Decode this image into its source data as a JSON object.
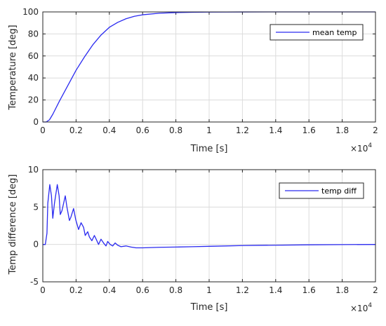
{
  "colors": {
    "line": "#2a2af0",
    "grid": "#dcdcdc",
    "axis": "#262626"
  },
  "chart_data": [
    {
      "type": "line",
      "title": "",
      "xlabel": "Time [s]",
      "ylabel": "Temperature [deg]",
      "x_exponent_base": "×10",
      "x_exponent_power": "4",
      "x_ticks": [
        "0",
        "0.2",
        "0.4",
        "0.6",
        "0.8",
        "1",
        "1.2",
        "1.4",
        "1.6",
        "1.8",
        "2"
      ],
      "y_ticks": [
        "0",
        "20",
        "40",
        "60",
        "80",
        "100"
      ],
      "xlim": [
        0,
        20000
      ],
      "ylim": [
        0,
        100
      ],
      "grid": true,
      "legend": "top-right",
      "series": [
        {
          "name": "mean temp",
          "x": [
            0,
            200,
            400,
            600,
            1000,
            1500,
            2000,
            2500,
            3000,
            3500,
            4000,
            4500,
            5000,
            5500,
            6000,
            7000,
            8000,
            9000,
            10000,
            12000,
            14000,
            16000,
            18000,
            20000
          ],
          "y": [
            0,
            0,
            2,
            7,
            19,
            33,
            47,
            59,
            70,
            79,
            86,
            90.5,
            93.8,
            96,
            97.4,
            98.8,
            99.4,
            99.7,
            99.85,
            99.95,
            100,
            100,
            100,
            100
          ]
        }
      ]
    },
    {
      "type": "line",
      "title": "",
      "xlabel": "Time [s]",
      "ylabel": "Temp difference [deg]",
      "x_exponent_base": "×10",
      "x_exponent_power": "4",
      "x_ticks": [
        "0",
        "0.2",
        "0.4",
        "0.6",
        "0.8",
        "1",
        "1.2",
        "1.4",
        "1.6",
        "1.8",
        "2"
      ],
      "y_ticks": [
        "-5",
        "0",
        "5",
        "10"
      ],
      "xlim": [
        0,
        20000
      ],
      "ylim": [
        -5,
        10
      ],
      "grid": true,
      "legend": "top-right",
      "series": [
        {
          "name": "temp diff",
          "x": [
            0,
            150,
            250,
            300,
            420,
            520,
            600,
            700,
            870,
            980,
            1050,
            1150,
            1350,
            1450,
            1600,
            1680,
            1850,
            1980,
            2150,
            2300,
            2450,
            2550,
            2700,
            2800,
            2950,
            3100,
            3250,
            3350,
            3500,
            3650,
            3800,
            3900,
            4050,
            4200,
            4350,
            4500,
            4700,
            5000,
            5300,
            5600,
            6000,
            6500,
            7000,
            8000,
            9000,
            10000,
            11000,
            12000,
            13000,
            14000,
            16000,
            18000,
            20000
          ],
          "y": [
            0,
            0,
            1.5,
            5.5,
            8.0,
            6.5,
            3.5,
            5.5,
            8.0,
            6.5,
            4.0,
            4.5,
            6.5,
            5.0,
            3.2,
            3.6,
            4.8,
            3.3,
            2.0,
            2.9,
            2.3,
            1.2,
            1.7,
            1.0,
            0.5,
            1.2,
            0.5,
            0.0,
            0.7,
            0.2,
            -0.2,
            0.4,
            0.0,
            -0.2,
            0.2,
            -0.1,
            -0.3,
            -0.2,
            -0.35,
            -0.45,
            -0.45,
            -0.42,
            -0.38,
            -0.35,
            -0.3,
            -0.25,
            -0.2,
            -0.15,
            -0.12,
            -0.1,
            -0.05,
            -0.02,
            0
          ]
        }
      ]
    }
  ]
}
